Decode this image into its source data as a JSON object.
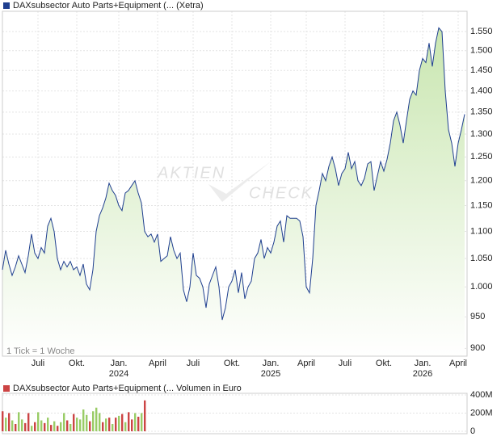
{
  "chart_data": [
    {
      "type": "line",
      "log_scale": true,
      "grid": true,
      "watermark": [
        "AKTIEN",
        "CHECK"
      ],
      "note": "1 Tick = 1 Woche",
      "series": [
        {
          "name": "DAXsubsector Auto Parts+Equipment (... (Xetra)",
          "color": "#1f3f8f",
          "fill": "#c9e6b0",
          "values": [
            1030,
            1065,
            1040,
            1020,
            1035,
            1055,
            1040,
            1025,
            1055,
            1095,
            1060,
            1050,
            1070,
            1060,
            1110,
            1125,
            1100,
            1050,
            1030,
            1045,
            1035,
            1045,
            1030,
            1035,
            1020,
            1040,
            1005,
            995,
            1030,
            1100,
            1130,
            1145,
            1165,
            1195,
            1180,
            1170,
            1150,
            1140,
            1175,
            1180,
            1190,
            1200,
            1175,
            1155,
            1100,
            1090,
            1095,
            1080,
            1095,
            1045,
            1050,
            1055,
            1090,
            1065,
            1050,
            1060,
            995,
            975,
            1000,
            1060,
            1020,
            1015,
            1000,
            965,
            1005,
            1020,
            1035,
            1000,
            945,
            965,
            1000,
            1010,
            1030,
            990,
            1025,
            980,
            1000,
            1010,
            1050,
            1060,
            1085,
            1050,
            1070,
            1060,
            1080,
            1110,
            1120,
            1080,
            1130,
            1125,
            1125,
            1125,
            1120,
            1090,
            1000,
            990,
            1050,
            1150,
            1180,
            1215,
            1200,
            1230,
            1250,
            1225,
            1190,
            1215,
            1225,
            1260,
            1225,
            1240,
            1200,
            1190,
            1205,
            1235,
            1240,
            1180,
            1210,
            1240,
            1220,
            1245,
            1280,
            1330,
            1350,
            1320,
            1280,
            1330,
            1380,
            1400,
            1390,
            1450,
            1480,
            1470,
            1520,
            1460,
            1520,
            1560,
            1550,
            1400,
            1310,
            1280,
            1230,
            1280,
            1310,
            1345
          ]
        }
      ],
      "xlim": [
        0,
        143
      ],
      "xticks": [
        {
          "value": 11,
          "label": "Juli"
        },
        {
          "value": 23,
          "label": "Okt."
        },
        {
          "value": 36,
          "label": "Jan."
        },
        {
          "value": 48,
          "label": "April"
        },
        {
          "value": 59,
          "label": "Juli"
        },
        {
          "value": 71,
          "label": "Okt."
        },
        {
          "value": 83,
          "label": "Jan."
        },
        {
          "value": 94,
          "label": "April"
        },
        {
          "value": 106,
          "label": "Juli"
        },
        {
          "value": 118,
          "label": "Okt."
        },
        {
          "value": 130,
          "label": "Jan."
        },
        {
          "value": 141,
          "label": "April"
        }
      ],
      "xticks_year": [
        {
          "value": 36,
          "label": "2024"
        },
        {
          "value": 83,
          "label": "2025"
        },
        {
          "value": 130,
          "label": "2026"
        }
      ],
      "ylim": [
        888,
        1605
      ],
      "yticks": [
        900,
        950,
        {
          "value": 1000,
          "label": "1.000"
        },
        {
          "value": 1050,
          "label": "1.050"
        },
        {
          "value": 1100,
          "label": "1.100"
        },
        {
          "value": 1150,
          "label": "1.150"
        },
        {
          "value": 1200,
          "label": "1.200"
        },
        {
          "value": 1250,
          "label": "1.250"
        },
        {
          "value": 1300,
          "label": "1.300"
        },
        {
          "value": 1350,
          "label": "1.350"
        },
        {
          "value": 1400,
          "label": "1.400"
        },
        {
          "value": 1450,
          "label": "1.450"
        },
        {
          "value": 1500,
          "label": "1.500"
        },
        {
          "value": 1550,
          "label": "1.550"
        }
      ]
    },
    {
      "type": "bar",
      "series": [
        {
          "name": "DAXsubsector Auto Parts+Equipment (... Volumen in Euro",
          "color": "#cc4444",
          "values": [
            220000000,
            150000000,
            200000000,
            120000000,
            80000000,
            210000000,
            130000000,
            90000000,
            200000000,
            60000000,
            100000000,
            210000000,
            120000000,
            90000000,
            150000000,
            70000000,
            110000000,
            60000000,
            100000000,
            200000000,
            120000000,
            80000000,
            190000000,
            150000000,
            130000000,
            240000000,
            180000000,
            110000000,
            220000000,
            260000000,
            200000000,
            100000000,
            140000000,
            150000000,
            80000000,
            150000000,
            170000000,
            190000000,
            100000000,
            210000000,
            130000000,
            200000000,
            160000000,
            200000000,
            340000000
          ],
          "colors": [
            "#cc4444",
            "#99cc66",
            "#cc4444",
            "#99cc66",
            "#cc4444",
            "#99cc66",
            "#99cc66",
            "#cc4444",
            "#cc4444",
            "#99cc66",
            "#cc4444",
            "#99cc66",
            "#99cc66",
            "#cc4444",
            "#99cc66",
            "#cc4444",
            "#99cc66",
            "#cc4444",
            "#99cc66",
            "#99cc66",
            "#cc4444",
            "#99cc66",
            "#cc4444",
            "#99cc66",
            "#99cc66",
            "#99cc66",
            "#99cc66",
            "#cc4444",
            "#99cc66",
            "#99cc66",
            "#99cc66",
            "#cc4444",
            "#99cc66",
            "#cc4444",
            "#99cc66",
            "#cc4444",
            "#99cc66",
            "#cc4444",
            "#99cc66",
            "#cc4444",
            "#cc4444",
            "#99cc66",
            "#cc4444",
            "#99cc66",
            "#cc4444"
          ]
        }
      ],
      "xlim": [
        0,
        143
      ],
      "ylim": [
        0,
        400000000
      ],
      "yticks": [
        0,
        {
          "value": 200000000,
          "label": "200M"
        },
        {
          "value": 400000000,
          "label": "400M"
        }
      ]
    }
  ]
}
